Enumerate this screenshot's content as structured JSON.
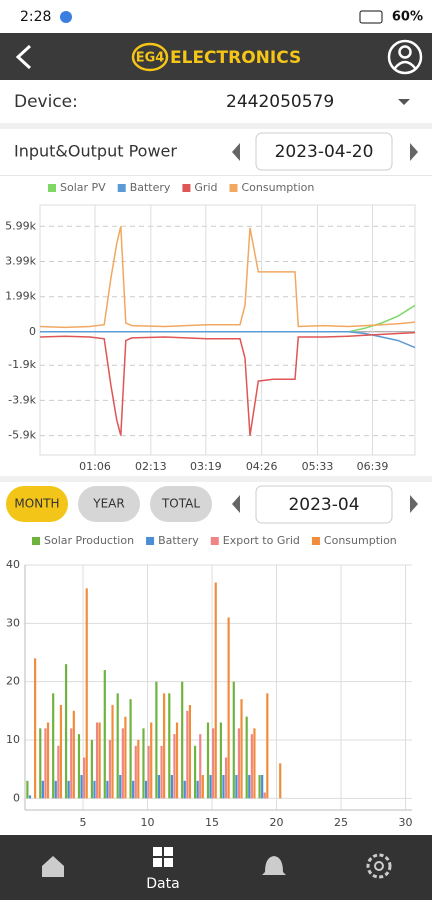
{
  "status_bar": {
    "time": "2:28",
    "battery": "60%"
  },
  "header": {
    "logo_mark": "EG4",
    "logo_text": "ELECTRONICS"
  },
  "device": {
    "label": "Device:",
    "value": "2442050579"
  },
  "power": {
    "title": "Input&Output Power",
    "date": "2023-04-20"
  },
  "period": {
    "tabs": [
      "MONTH",
      "YEAR",
      "TOTAL"
    ],
    "date": "2023-04"
  },
  "chart_data": [
    {
      "type": "line",
      "x": [
        0,
        30,
        60,
        77,
        85,
        92,
        97,
        103,
        110,
        150,
        200,
        240,
        246,
        252,
        262,
        280,
        306,
        310,
        340,
        370,
        390,
        410,
        430,
        450
      ],
      "series": [
        {
          "name": "Solar PV",
          "color": "#7fd866",
          "values": [
            0,
            0,
            0,
            0,
            0,
            0,
            0,
            0,
            0,
            0,
            0,
            0,
            0,
            0,
            0,
            0,
            0,
            0,
            0,
            0,
            200,
            500,
            900,
            1500
          ]
        },
        {
          "name": "Battery",
          "color": "#5b9bd5",
          "values": [
            0,
            0,
            0,
            0,
            0,
            0,
            0,
            0,
            0,
            0,
            0,
            0,
            0,
            0,
            0,
            0,
            0,
            0,
            0,
            0,
            -100,
            -300,
            -500,
            -900
          ]
        },
        {
          "name": "Grid",
          "color": "#e05555",
          "values": [
            -300,
            -250,
            -300,
            -400,
            -3000,
            -5000,
            -5900,
            -500,
            -350,
            -300,
            -400,
            -400,
            -1500,
            -5900,
            -2800,
            -2700,
            -2700,
            -300,
            -300,
            -250,
            -200,
            -150,
            -100,
            -50
          ]
        },
        {
          "name": "Consumption",
          "color": "#f2a860",
          "values": [
            300,
            250,
            300,
            400,
            3000,
            5000,
            5990,
            500,
            350,
            300,
            400,
            400,
            1500,
            5900,
            3400,
            3400,
            3400,
            300,
            350,
            300,
            350,
            400,
            450,
            550
          ]
        }
      ],
      "xlim": [
        0,
        450
      ],
      "xticks": [
        {
          "value": 66,
          "label": "01:06"
        },
        {
          "value": 133,
          "label": "02:13"
        },
        {
          "value": 199,
          "label": "03:19"
        },
        {
          "value": 266,
          "label": "04:26"
        },
        {
          "value": 333,
          "label": "05:33"
        },
        {
          "value": 399,
          "label": "06:39"
        }
      ],
      "ylim": [
        -7000,
        7200
      ],
      "yticks": [
        {
          "value": 5990,
          "label": "5.99k"
        },
        {
          "value": 3990,
          "label": "3.99k"
        },
        {
          "value": 1990,
          "label": "1.99k"
        },
        0,
        {
          "value": -1900,
          "label": "-1.9k"
        },
        {
          "value": -3900,
          "label": "-3.9k"
        },
        {
          "value": -5900,
          "label": "-5.9k"
        }
      ],
      "grid": true
    },
    {
      "type": "bar",
      "x": [
        1,
        2,
        3,
        4,
        5,
        6,
        7,
        8,
        9,
        10,
        11,
        12,
        13,
        14,
        15,
        16,
        17,
        18,
        19,
        20
      ],
      "series": [
        {
          "name": "Solar Production",
          "color": "#6fb33f",
          "values": [
            3,
            12,
            18,
            23,
            11,
            10,
            22,
            18,
            17,
            12,
            20,
            18,
            20,
            9,
            13,
            13,
            20,
            14,
            4,
            0
          ]
        },
        {
          "name": "Battery",
          "color": "#4a8fd6",
          "values": [
            0.5,
            3,
            3,
            3,
            4,
            3,
            3,
            4,
            3,
            3,
            4,
            4,
            3,
            3,
            4,
            4,
            4,
            4,
            4,
            0
          ]
        },
        {
          "name": "Export to Grid",
          "color": "#f08585",
          "values": [
            0,
            12,
            9,
            12,
            7,
            13,
            10,
            12,
            9,
            9,
            9,
            11,
            15,
            11,
            12,
            7,
            12,
            11,
            1,
            0
          ]
        },
        {
          "name": "Consumption",
          "color": "#f08c3a",
          "values": [
            24,
            13,
            16,
            15,
            36,
            13,
            16,
            14,
            10,
            13,
            18,
            13,
            16,
            4,
            37,
            31,
            17,
            12,
            18,
            6
          ]
        }
      ],
      "xlim": [
        0.5,
        30.5
      ],
      "xticks": [
        5,
        10,
        15,
        20,
        25,
        30
      ],
      "ylim": [
        -2,
        40
      ],
      "yticks": [
        0,
        10,
        20,
        30,
        40
      ],
      "grid": true
    }
  ],
  "nav": {
    "active": "Data"
  }
}
